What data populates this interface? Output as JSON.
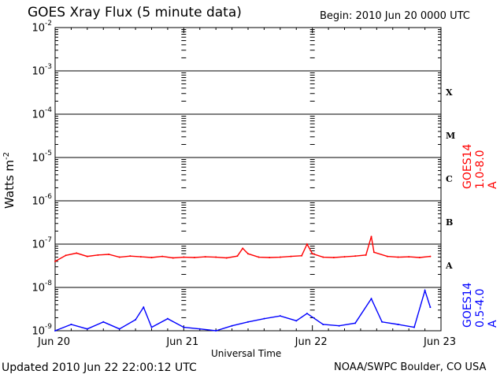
{
  "header": {
    "title": "GOES Xray Flux (5 minute data)",
    "begin": "Begin:  2010 Jun 20 0000 UTC"
  },
  "footer": {
    "updated": "Updated 2010 Jun 22 22:00:12 UTC",
    "credit": "NOAA/SWPC Boulder, CO USA"
  },
  "flare_classes": [
    "X",
    "M",
    "C",
    "B",
    "A"
  ],
  "chart_data": {
    "type": "line",
    "title": "GOES Xray Flux (5 minute data)",
    "xlabel": "Universal Time",
    "ylabel": "Watts m",
    "ylabel_sup": "-2",
    "y_scale": "log",
    "ylim": [
      1e-09,
      0.01
    ],
    "xlim": [
      "2010-06-20 00:00",
      "2010-06-23 00:00"
    ],
    "grid": true,
    "x_ticks": [
      "Jun 20",
      "Jun 21",
      "Jun 22",
      "Jun 23"
    ],
    "y_ticks": [
      {
        "base": "10",
        "exp": "-2"
      },
      {
        "base": "10",
        "exp": "-3"
      },
      {
        "base": "10",
        "exp": "-4"
      },
      {
        "base": "10",
        "exp": "-5"
      },
      {
        "base": "10",
        "exp": "-6"
      },
      {
        "base": "10",
        "exp": "-7"
      },
      {
        "base": "10",
        "exp": "-8"
      },
      {
        "base": "10",
        "exp": "-9"
      }
    ],
    "series": [
      {
        "name": "GOES14 1.0-8.0 A",
        "color": "#ff0000",
        "points": [
          [
            "2010-06-20 00:00",
            4e-08
          ],
          [
            "2010-06-20 02:00",
            5.5e-08
          ],
          [
            "2010-06-20 04:00",
            6.2e-08
          ],
          [
            "2010-06-20 06:00",
            5.2e-08
          ],
          [
            "2010-06-20 08:00",
            5.6e-08
          ],
          [
            "2010-06-20 10:00",
            5.8e-08
          ],
          [
            "2010-06-20 12:00",
            5e-08
          ],
          [
            "2010-06-20 14:00",
            5.3e-08
          ],
          [
            "2010-06-20 16:00",
            5.1e-08
          ],
          [
            "2010-06-20 18:00",
            4.9e-08
          ],
          [
            "2010-06-20 20:00",
            5.2e-08
          ],
          [
            "2010-06-20 22:00",
            4.8e-08
          ],
          [
            "2010-06-21 00:00",
            5e-08
          ],
          [
            "2010-06-21 02:00",
            4.9e-08
          ],
          [
            "2010-06-21 04:00",
            5.1e-08
          ],
          [
            "2010-06-21 06:00",
            5e-08
          ],
          [
            "2010-06-21 08:00",
            4.8e-08
          ],
          [
            "2010-06-21 10:00",
            5.3e-08
          ],
          [
            "2010-06-21 11:00",
            8e-08
          ],
          [
            "2010-06-21 12:00",
            6e-08
          ],
          [
            "2010-06-21 14:00",
            5e-08
          ],
          [
            "2010-06-21 16:00",
            4.9e-08
          ],
          [
            "2010-06-21 18:00",
            5e-08
          ],
          [
            "2010-06-21 20:00",
            5.2e-08
          ],
          [
            "2010-06-21 22:00",
            5.4e-08
          ],
          [
            "2010-06-21 23:00",
            1e-07
          ],
          [
            "2010-06-22 00:00",
            6e-08
          ],
          [
            "2010-06-22 02:00",
            5e-08
          ],
          [
            "2010-06-22 04:00",
            4.9e-08
          ],
          [
            "2010-06-22 06:00",
            5.1e-08
          ],
          [
            "2010-06-22 08:00",
            5.3e-08
          ],
          [
            "2010-06-22 10:00",
            5.6e-08
          ],
          [
            "2010-06-22 11:00",
            1.5e-07
          ],
          [
            "2010-06-22 11:30",
            6.5e-08
          ],
          [
            "2010-06-22 14:00",
            5.2e-08
          ],
          [
            "2010-06-22 16:00",
            5e-08
          ],
          [
            "2010-06-22 18:00",
            5.1e-08
          ],
          [
            "2010-06-22 20:00",
            4.9e-08
          ],
          [
            "2010-06-22 22:00",
            5.2e-08
          ]
        ]
      },
      {
        "name": "GOES14 0.5-4.0 A",
        "color": "#0000ff",
        "points": [
          [
            "2010-06-20 00:00",
            1e-09
          ],
          [
            "2010-06-20 03:00",
            1.4e-09
          ],
          [
            "2010-06-20 06:00",
            1.1e-09
          ],
          [
            "2010-06-20 09:00",
            1.6e-09
          ],
          [
            "2010-06-20 12:00",
            1.1e-09
          ],
          [
            "2010-06-20 15:00",
            1.8e-09
          ],
          [
            "2010-06-20 16:30",
            3.5e-09
          ],
          [
            "2010-06-20 18:00",
            1.2e-09
          ],
          [
            "2010-06-20 21:00",
            1.9e-09
          ],
          [
            "2010-06-21 00:00",
            1.2e-09
          ],
          [
            "2010-06-21 03:00",
            1.1e-09
          ],
          [
            "2010-06-21 06:00",
            1e-09
          ],
          [
            "2010-06-21 09:00",
            1.3e-09
          ],
          [
            "2010-06-21 12:00",
            1.6e-09
          ],
          [
            "2010-06-21 15:00",
            1.9e-09
          ],
          [
            "2010-06-21 18:00",
            2.2e-09
          ],
          [
            "2010-06-21 21:00",
            1.7e-09
          ],
          [
            "2010-06-21 23:00",
            2.5e-09
          ],
          [
            "2010-06-22 02:00",
            1.4e-09
          ],
          [
            "2010-06-22 05:00",
            1.3e-09
          ],
          [
            "2010-06-22 08:00",
            1.5e-09
          ],
          [
            "2010-06-22 11:00",
            5.5e-09
          ],
          [
            "2010-06-22 13:00",
            1.6e-09
          ],
          [
            "2010-06-22 16:00",
            1.4e-09
          ],
          [
            "2010-06-22 19:00",
            1.2e-09
          ],
          [
            "2010-06-22 21:00",
            8.5e-09
          ],
          [
            "2010-06-22 22:00",
            3.5e-09
          ]
        ]
      }
    ]
  }
}
